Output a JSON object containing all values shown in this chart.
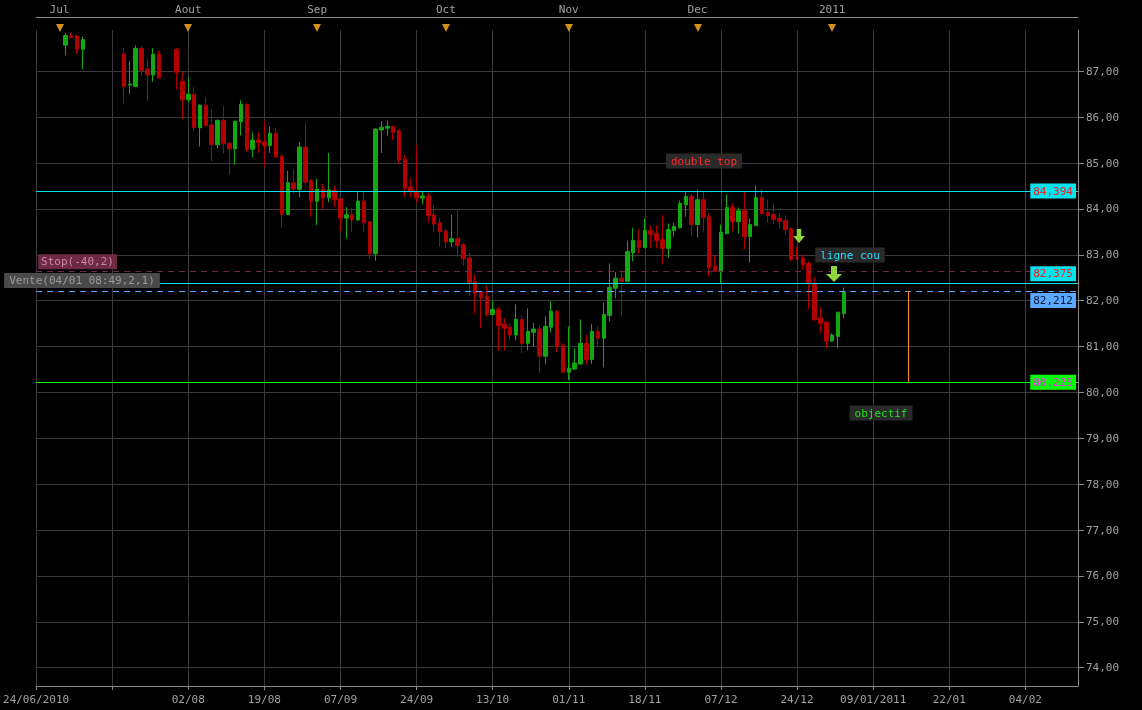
{
  "chart_data": {
    "type": "candlestick",
    "categories": [
      "24/06/2010",
      null,
      null,
      null,
      null,
      null,
      null,
      null,
      null,
      null,
      null,
      null,
      null,
      null,
      null,
      null,
      null,
      null,
      null,
      null,
      null,
      null,
      null,
      null,
      null,
      null,
      "02/08",
      null,
      null,
      null,
      null,
      null,
      null,
      null,
      null,
      null,
      null,
      null,
      null,
      "19/08",
      null,
      null,
      null,
      null,
      null,
      null,
      null,
      null,
      null,
      null,
      null,
      null,
      "07/09",
      null,
      null,
      null,
      null,
      null,
      null,
      null,
      null,
      null,
      null,
      null,
      null,
      "24/09",
      null,
      null,
      null,
      null,
      null,
      null,
      null,
      null,
      null,
      null,
      null,
      null,
      "13/10",
      null,
      null,
      null,
      null,
      null,
      null,
      null,
      null,
      null,
      null,
      null,
      null,
      "01/11",
      null,
      null,
      null,
      null,
      null,
      null,
      null,
      null,
      null,
      null,
      null,
      null,
      "18/11",
      null,
      null,
      null,
      null,
      null,
      null,
      null,
      null,
      null,
      null,
      null,
      null,
      "07/12",
      null,
      null,
      null,
      null,
      null,
      null,
      null,
      null,
      null,
      null,
      null,
      null,
      "24/12",
      null,
      null,
      null,
      null,
      null,
      null,
      null,
      null,
      null,
      null,
      null,
      null,
      "09/01/2011",
      null,
      null,
      null,
      null,
      null,
      null,
      null,
      null,
      null,
      null,
      null,
      null,
      "22/01",
      null,
      null,
      null,
      null,
      null,
      null,
      null,
      null,
      null,
      null,
      null,
      null,
      "04/02",
      null,
      null,
      null,
      null,
      null,
      null,
      null,
      null,
      null
    ],
    "ohlc": [
      null,
      null,
      null,
      null,
      null,
      [
        87.57,
        87.84,
        87.35,
        87.78
      ],
      [
        87.77,
        87.84,
        87.72,
        87.74
      ],
      [
        87.77,
        87.8,
        87.38,
        87.48
      ],
      [
        87.48,
        87.75,
        87.05,
        87.69
      ],
      null,
      null,
      null,
      null,
      null,
      null,
      [
        87.38,
        87.5,
        86.29,
        86.67
      ],
      [
        86.7,
        87.22,
        86.51,
        86.72
      ],
      [
        86.67,
        87.57,
        86.65,
        87.5
      ],
      [
        87.5,
        87.55,
        86.89,
        87.02
      ],
      [
        87.05,
        87.28,
        86.35,
        86.92
      ],
      [
        86.92,
        87.5,
        86.77,
        87.37
      ],
      [
        87.37,
        87.45,
        86.83,
        86.86
      ],
      null,
      null,
      [
        87.48,
        87.5,
        86.6,
        86.98
      ],
      [
        86.78,
        86.98,
        85.96,
        86.38
      ],
      [
        86.38,
        86.87,
        86.33,
        86.5
      ],
      [
        86.5,
        86.65,
        85.69,
        85.77
      ],
      [
        85.77,
        86.28,
        85.36,
        86.26
      ],
      [
        86.26,
        86.44,
        85.8,
        85.82
      ],
      [
        85.83,
        86.17,
        85.04,
        85.4
      ],
      [
        85.4,
        85.95,
        85.32,
        85.93
      ],
      [
        85.93,
        86.24,
        85.21,
        85.43
      ],
      [
        85.43,
        85.46,
        84.75,
        85.31
      ],
      [
        85.31,
        85.92,
        84.96,
        85.91
      ],
      [
        85.9,
        86.37,
        85.6,
        86.28
      ],
      [
        86.28,
        86.3,
        85.25,
        85.3
      ],
      [
        85.3,
        85.67,
        85.13,
        85.5
      ],
      [
        85.5,
        85.67,
        85.22,
        85.44
      ],
      [
        85.46,
        85.91,
        84.92,
        85.38
      ],
      [
        85.38,
        85.8,
        85.22,
        85.65
      ],
      [
        85.65,
        85.75,
        85.12,
        85.13
      ],
      [
        85.15,
        85.2,
        83.59,
        83.88
      ],
      [
        83.88,
        84.83,
        83.88,
        84.57
      ],
      [
        84.57,
        84.87,
        84.33,
        84.43
      ],
      [
        84.43,
        85.46,
        84.26,
        85.35
      ],
      [
        85.35,
        85.89,
        84.51,
        84.58
      ],
      [
        84.61,
        84.65,
        83.83,
        84.17
      ],
      [
        84.17,
        84.65,
        83.65,
        84.43
      ],
      [
        84.43,
        84.54,
        84.0,
        84.24
      ],
      [
        84.24,
        85.22,
        84.15,
        84.41
      ],
      [
        84.41,
        84.5,
        84.04,
        84.2
      ],
      [
        84.22,
        84.22,
        83.52,
        83.8
      ],
      [
        83.8,
        84.04,
        83.35,
        83.87
      ],
      [
        83.87,
        84.02,
        83.5,
        83.76
      ],
      [
        83.76,
        84.37,
        83.74,
        84.17
      ],
      [
        84.17,
        84.37,
        83.5,
        83.7
      ],
      [
        83.72,
        83.72,
        82.91,
        83.02
      ],
      [
        83.02,
        85.76,
        82.87,
        85.74
      ],
      [
        85.72,
        85.91,
        85.22,
        85.78
      ],
      [
        85.76,
        85.93,
        85.59,
        85.8
      ],
      [
        85.8,
        85.8,
        85.5,
        85.67
      ],
      [
        85.7,
        85.74,
        84.98,
        85.07
      ],
      [
        85.09,
        85.17,
        84.26,
        84.46
      ],
      [
        84.48,
        84.67,
        84.26,
        84.39
      ],
      [
        84.37,
        85.39,
        84.13,
        84.24
      ],
      [
        84.24,
        84.37,
        84.11,
        84.28
      ],
      [
        84.28,
        84.35,
        83.7,
        83.85
      ],
      [
        83.87,
        84.09,
        83.5,
        83.67
      ],
      [
        83.7,
        83.8,
        83.17,
        83.5
      ],
      [
        83.52,
        83.57,
        83.15,
        83.28
      ],
      [
        83.28,
        83.87,
        83.17,
        83.35
      ],
      [
        83.35,
        83.98,
        82.96,
        83.2
      ],
      [
        83.22,
        83.26,
        82.76,
        82.91
      ],
      [
        82.93,
        83.04,
        82.11,
        82.39
      ],
      [
        82.41,
        82.57,
        81.72,
        82.15
      ],
      [
        82.18,
        82.18,
        81.4,
        82.07
      ],
      [
        82.09,
        82.33,
        81.65,
        81.7
      ],
      [
        81.7,
        82.0,
        81.68,
        81.81
      ],
      [
        81.81,
        81.86,
        80.91,
        81.46
      ],
      [
        81.49,
        81.62,
        80.91,
        81.4
      ],
      [
        81.42,
        81.51,
        81.14,
        81.25
      ],
      [
        81.25,
        81.92,
        81.14,
        81.59
      ],
      [
        81.59,
        81.68,
        80.86,
        81.07
      ],
      [
        81.07,
        81.83,
        80.92,
        81.33
      ],
      [
        81.31,
        81.51,
        81.0,
        81.38
      ],
      [
        81.38,
        81.46,
        80.42,
        80.79
      ],
      [
        80.79,
        81.66,
        80.62,
        81.44
      ],
      [
        81.42,
        81.99,
        81.31,
        81.77
      ],
      [
        81.77,
        81.79,
        80.88,
        81.01
      ],
      [
        81.03,
        81.07,
        80.43,
        80.44
      ],
      [
        80.44,
        81.44,
        80.27,
        80.53
      ],
      [
        80.51,
        80.96,
        80.49,
        80.64
      ],
      [
        80.62,
        81.59,
        80.6,
        81.07
      ],
      [
        81.07,
        81.25,
        80.6,
        80.72
      ],
      [
        80.72,
        81.49,
        80.62,
        81.33
      ],
      [
        81.33,
        81.44,
        81.0,
        81.18
      ],
      [
        81.18,
        81.96,
        80.55,
        81.7
      ],
      [
        81.68,
        82.81,
        81.55,
        82.29
      ],
      [
        82.27,
        82.62,
        82.05,
        82.49
      ],
      [
        82.49,
        82.66,
        81.66,
        82.42
      ],
      [
        82.42,
        83.31,
        82.4,
        83.07
      ],
      [
        83.05,
        83.59,
        82.86,
        83.31
      ],
      [
        83.31,
        83.55,
        83.03,
        83.16
      ],
      [
        83.16,
        83.79,
        83.14,
        83.53
      ],
      [
        83.53,
        83.64,
        83.14,
        83.44
      ],
      [
        83.46,
        83.64,
        83.14,
        83.31
      ],
      [
        83.33,
        83.86,
        82.79,
        83.14
      ],
      [
        83.14,
        83.68,
        82.94,
        83.55
      ],
      [
        83.53,
        83.7,
        83.4,
        83.62
      ],
      [
        83.59,
        84.18,
        83.57,
        84.12
      ],
      [
        84.09,
        84.38,
        83.83,
        84.27
      ],
      [
        84.27,
        84.33,
        83.42,
        83.66
      ],
      [
        83.66,
        84.42,
        83.38,
        84.2
      ],
      [
        84.2,
        84.38,
        83.49,
        83.81
      ],
      [
        83.83,
        83.9,
        82.53,
        82.72
      ],
      [
        82.75,
        82.99,
        82.62,
        82.64
      ],
      [
        82.64,
        83.66,
        82.36,
        83.49
      ],
      [
        83.46,
        84.31,
        83.45,
        84.03
      ],
      [
        84.03,
        84.12,
        83.51,
        83.72
      ],
      [
        83.72,
        84.03,
        83.46,
        83.96
      ],
      [
        83.96,
        84.36,
        83.11,
        83.4
      ],
      [
        83.4,
        83.79,
        82.83,
        83.66
      ],
      [
        83.64,
        84.51,
        83.62,
        84.25
      ],
      [
        84.25,
        84.44,
        83.88,
        83.9
      ],
      [
        83.92,
        84.2,
        83.7,
        83.86
      ],
      [
        83.88,
        84.12,
        83.66,
        83.77
      ],
      [
        83.79,
        83.9,
        83.57,
        83.72
      ],
      [
        83.75,
        83.86,
        83.44,
        83.55
      ],
      [
        83.57,
        83.59,
        82.86,
        82.9
      ],
      [
        82.94,
        83.18,
        82.88,
        82.94
      ],
      [
        82.92,
        82.99,
        82.68,
        82.79
      ],
      [
        82.81,
        82.86,
        81.81,
        82.37
      ],
      [
        82.37,
        82.51,
        81.55,
        81.59
      ],
      [
        81.62,
        81.86,
        81.29,
        81.51
      ],
      [
        81.53,
        81.55,
        80.96,
        81.12
      ],
      [
        81.12,
        81.29,
        81.1,
        81.25
      ],
      [
        81.22,
        81.75,
        80.96,
        81.75
      ],
      [
        81.72,
        82.29,
        81.62,
        82.2
      ],
      null,
      null,
      null,
      null,
      null,
      null,
      null,
      null,
      null,
      null,
      null,
      null,
      null,
      null,
      null,
      null,
      null,
      null,
      null,
      null,
      null,
      null,
      null,
      null,
      null,
      null,
      null,
      null,
      null,
      null,
      null,
      null,
      null,
      null,
      null,
      null,
      null,
      null,
      null,
      null
    ],
    "colors": [
      null,
      null,
      null,
      null,
      null,
      "#12a812",
      "#b00000",
      "#b00000",
      "#12a812",
      null,
      null,
      null,
      null,
      null,
      null,
      "#b00000",
      "#12a812",
      "#12a812",
      "#b00000",
      "#b00000",
      "#12a812",
      "#b00000",
      null,
      null,
      "#b00000",
      "#b00000",
      "#12a812",
      "#b00000",
      "#12a812",
      "#b00000",
      "#b00000",
      "#12a812",
      "#b00000",
      "#b00000",
      "#12a812",
      "#12a812",
      "#b00000",
      "#12a812",
      "#b00000",
      "#b00000",
      "#12a812",
      "#b00000",
      "#b00000",
      "#12a812",
      "#b00000",
      "#12a812",
      "#b00000",
      "#b00000",
      "#12a812",
      "#b00000",
      "#12a812",
      "#b00000",
      "#b00000",
      "#12a812",
      "#b00000",
      "#12a812",
      "#b00000",
      "#b00000",
      "#12a812",
      "#12a812",
      "#12a812",
      "#b00000",
      "#b00000",
      "#b00000",
      "#b00000",
      "#b00000",
      "#12a812",
      "#b00000",
      "#b00000",
      "#b00000",
      "#b00000",
      "#12a812",
      "#b00000",
      "#b00000",
      "#b00000",
      "#b00000",
      "#b00000",
      "#b00000",
      "#12a812",
      "#b00000",
      "#b00000",
      "#b00000",
      "#12a812",
      "#b00000",
      "#12a812",
      "#12a812",
      "#b00000",
      "#12a812",
      "#12a812",
      "#b00000",
      "#b00000",
      "#12a812",
      "#12a812",
      "#12a812",
      "#b00000",
      "#12a812",
      "#b00000",
      "#12a812",
      "#12a812",
      "#12a812",
      "#b00000",
      "#12a812",
      "#12a812",
      "#b00000",
      "#12a812",
      "#b00000",
      "#b00000",
      "#b00000",
      "#12a812",
      "#12a812",
      "#12a812",
      "#12a812",
      "#b00000",
      "#12a812",
      "#b00000",
      "#b00000",
      "#b00000",
      "#12a812",
      "#12a812",
      "#b00000",
      "#12a812",
      "#b00000",
      "#12a812",
      "#12a812",
      "#b00000",
      "#b00000",
      "#b00000",
      "#b00000",
      "#b00000",
      "#b00000",
      "#b00000",
      "#b00000",
      "#b00000",
      "#b00000",
      "#b00000",
      "#b00000",
      "#12a812",
      "#12a812",
      "#12a812",
      null,
      null,
      null,
      null,
      null,
      null,
      null,
      null,
      null,
      null,
      null,
      null,
      null,
      null,
      null,
      null,
      null,
      null,
      null,
      null,
      null,
      null,
      null,
      null,
      null,
      null,
      null,
      null,
      null,
      null,
      null,
      null,
      null,
      null,
      null,
      null,
      null,
      null,
      null,
      null
    ],
    "ylim": [
      73.6,
      87.9
    ],
    "yticks": [
      {
        "value": 74,
        "label": "74,00"
      },
      {
        "value": 75,
        "label": "75,00"
      },
      {
        "value": 76,
        "label": "76,00"
      },
      {
        "value": 77,
        "label": "77,00"
      },
      {
        "value": 78,
        "label": "78,00"
      },
      {
        "value": 79,
        "label": "79,00"
      },
      {
        "value": 80,
        "label": "80,00"
      },
      {
        "value": 81,
        "label": "81,00"
      },
      {
        "value": 82,
        "label": "82,00"
      },
      {
        "value": 83,
        "label": "83,00"
      },
      {
        "value": 84,
        "label": "84,00"
      },
      {
        "value": 85,
        "label": "85,00"
      },
      {
        "value": 86,
        "label": "86,00"
      },
      {
        "value": 87,
        "label": "87,00"
      }
    ],
    "grid": true,
    "ref_lines": [
      {
        "axis": "y",
        "value": 84.394,
        "label": "84,394",
        "color": "#00e5f0"
      },
      {
        "axis": "y",
        "value": 82.375,
        "label": "82,375",
        "color": "#00e5f0"
      },
      {
        "axis": "y",
        "value": 82.64,
        "label": "Stop(-40,2)",
        "color": "#6e2a44",
        "line_style": "dashed"
      },
      {
        "axis": "y",
        "value": 82.212,
        "label": "82,212",
        "color": "#5aa8ff",
        "line_style": "dashed"
      },
      {
        "axis": "y",
        "value": 80.225,
        "label": "80,225",
        "color": "#00ff00"
      }
    ],
    "annotations": [
      "double top",
      "ligne cou",
      "objectif",
      {
        "text": "Vente(04/01 08:49,2,1)",
        "y": 82.212
      },
      "Jul",
      "Aout",
      "Sep",
      "Oct",
      "Nov",
      "Dec",
      "2011"
    ]
  }
}
